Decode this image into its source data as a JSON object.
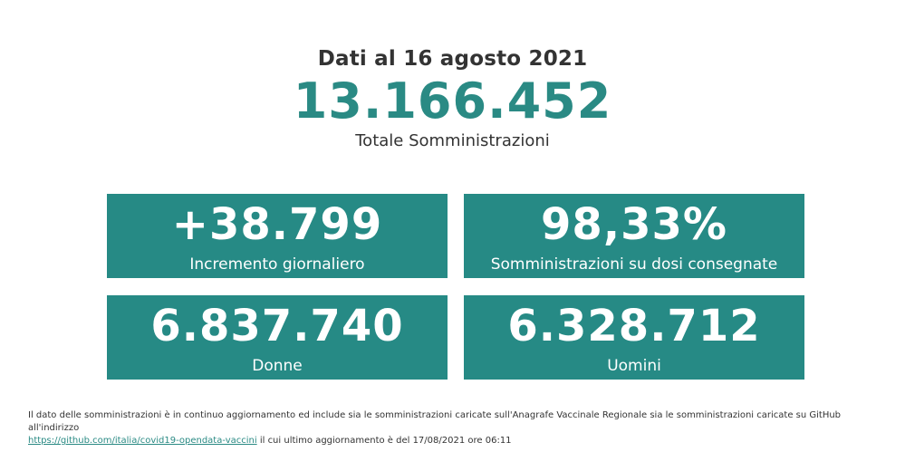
{
  "header": {
    "date_title": "Dati al 16 agosto 2021",
    "total_value": "13.166.452",
    "total_label": "Totale Somministrazioni"
  },
  "tiles": [
    {
      "value": "+38.799",
      "label": "Incremento giornaliero"
    },
    {
      "value": "98,33%",
      "label": "Somministrazioni su dosi consegnate"
    },
    {
      "value": "6.837.740",
      "label": "Donne"
    },
    {
      "value": "6.328.712",
      "label": "Uomini"
    }
  ],
  "footnote": {
    "text_before": "Il dato delle somministrazioni è in continuo aggiornamento ed include sia le somministrazioni caricate sull'Anagrafe Vaccinale Regionale sia le somministrazioni caricate su GitHub all'indirizzo",
    "link_text": "https://github.com/italia/covid19-opendata-vaccini",
    "text_after": "il cui ultimo aggiornamento è del 17/08/2021 ore 06:11"
  },
  "colors": {
    "accent": "#268a85",
    "text": "#333333",
    "background": "#ffffff"
  }
}
